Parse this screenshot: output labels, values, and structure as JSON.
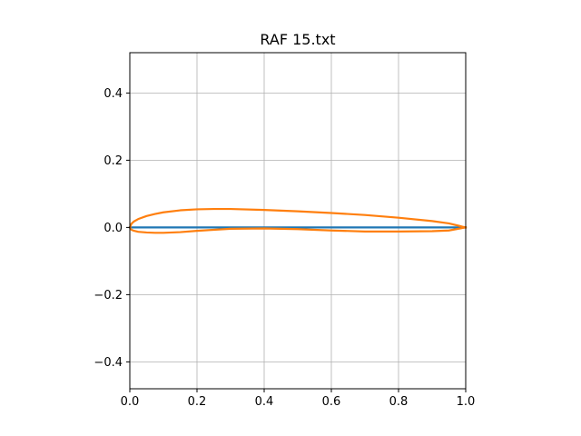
{
  "chart_data": {
    "type": "line",
    "title": "RAF 15.txt",
    "xlabel": "",
    "ylabel": "",
    "xlim": [
      0.0,
      1.0
    ],
    "ylim": [
      -0.48,
      0.52
    ],
    "grid": true,
    "xticks": [
      0.0,
      0.2,
      0.4,
      0.6,
      0.8,
      1.0
    ],
    "xtick_labels": [
      "0.0",
      "0.2",
      "0.4",
      "0.6",
      "0.8",
      "1.0"
    ],
    "yticks": [
      -0.4,
      -0.2,
      0.0,
      0.2,
      0.4
    ],
    "ytick_labels": [
      "−0.4",
      "−0.2",
      "0.0",
      "0.2",
      "0.4"
    ],
    "series": [
      {
        "color": "#1f77b4",
        "x": [
          0.0,
          1.0
        ],
        "y": [
          0.0,
          0.0
        ]
      },
      {
        "color": "#ff7f0e",
        "x": [
          1.0,
          0.95,
          0.9,
          0.8,
          0.7,
          0.6,
          0.5,
          0.4,
          0.3,
          0.25,
          0.2,
          0.15,
          0.1,
          0.075,
          0.05,
          0.025,
          0.0125,
          0.005,
          0.0,
          0.005,
          0.0125,
          0.025,
          0.05,
          0.075,
          0.1,
          0.15,
          0.2,
          0.3,
          0.4,
          0.5,
          0.6,
          0.7,
          0.8,
          0.9,
          0.95,
          1.0
        ],
        "y": [
          0.0,
          0.012,
          0.019,
          0.029,
          0.037,
          0.043,
          0.048,
          0.052,
          0.055,
          0.055,
          0.054,
          0.051,
          0.045,
          0.04,
          0.034,
          0.025,
          0.018,
          0.011,
          0.0,
          -0.007,
          -0.01,
          -0.013,
          -0.015,
          -0.016,
          -0.016,
          -0.014,
          -0.01,
          -0.004,
          -0.003,
          -0.005,
          -0.009,
          -0.012,
          -0.012,
          -0.011,
          -0.009,
          0.0
        ]
      }
    ]
  }
}
